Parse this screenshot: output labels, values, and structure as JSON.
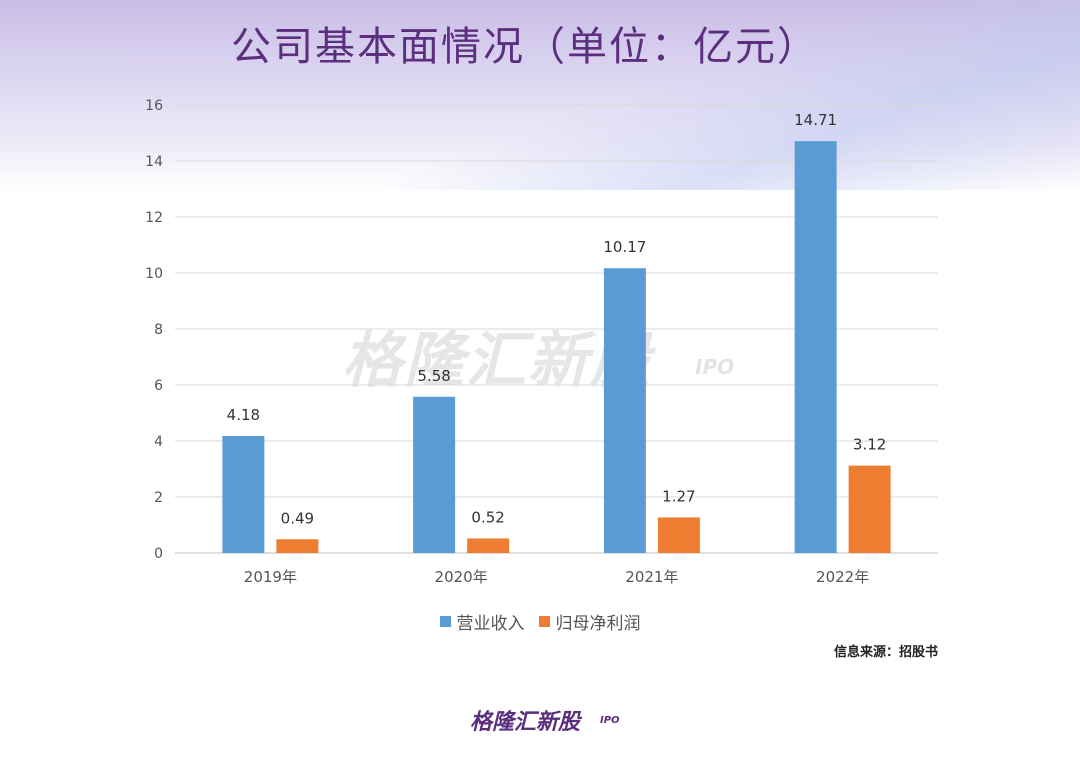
{
  "page": {
    "title": "公司基本面情况（单位：亿元）",
    "watermark": "格隆汇新股",
    "watermark_sub": "IPO",
    "source": "信息来源：招股书",
    "footer_logo": "格隆汇新股",
    "footer_logo_sub": "IPO"
  },
  "colors": {
    "revenue": "#5b9bd5",
    "net_profit": "#ed7d31",
    "title": "#5b2f7e"
  },
  "legend": {
    "revenue_label": "营业收入",
    "net_profit_label": "归母净利润"
  },
  "chart_data": {
    "type": "bar",
    "title": "公司基本面情况（单位：亿元）",
    "categories": [
      "2019年",
      "2020年",
      "2021年",
      "2022年"
    ],
    "series": [
      {
        "name": "营业收入",
        "values": [
          4.18,
          5.58,
          10.17,
          14.71
        ],
        "labels": [
          "4.18",
          "5.58",
          "10.17",
          "14.71"
        ]
      },
      {
        "name": "归母净利润",
        "values": [
          0.49,
          0.52,
          1.27,
          3.12
        ],
        "labels": [
          "0.49",
          "0.52",
          "1.27",
          "3.12"
        ]
      }
    ],
    "yticks": [
      "0",
      "2",
      "4",
      "6",
      "8",
      "10",
      "12",
      "14",
      "16"
    ],
    "ylim": [
      0,
      16
    ],
    "xlabel": "",
    "ylabel": "",
    "grid": true,
    "legend_position": "bottom"
  }
}
